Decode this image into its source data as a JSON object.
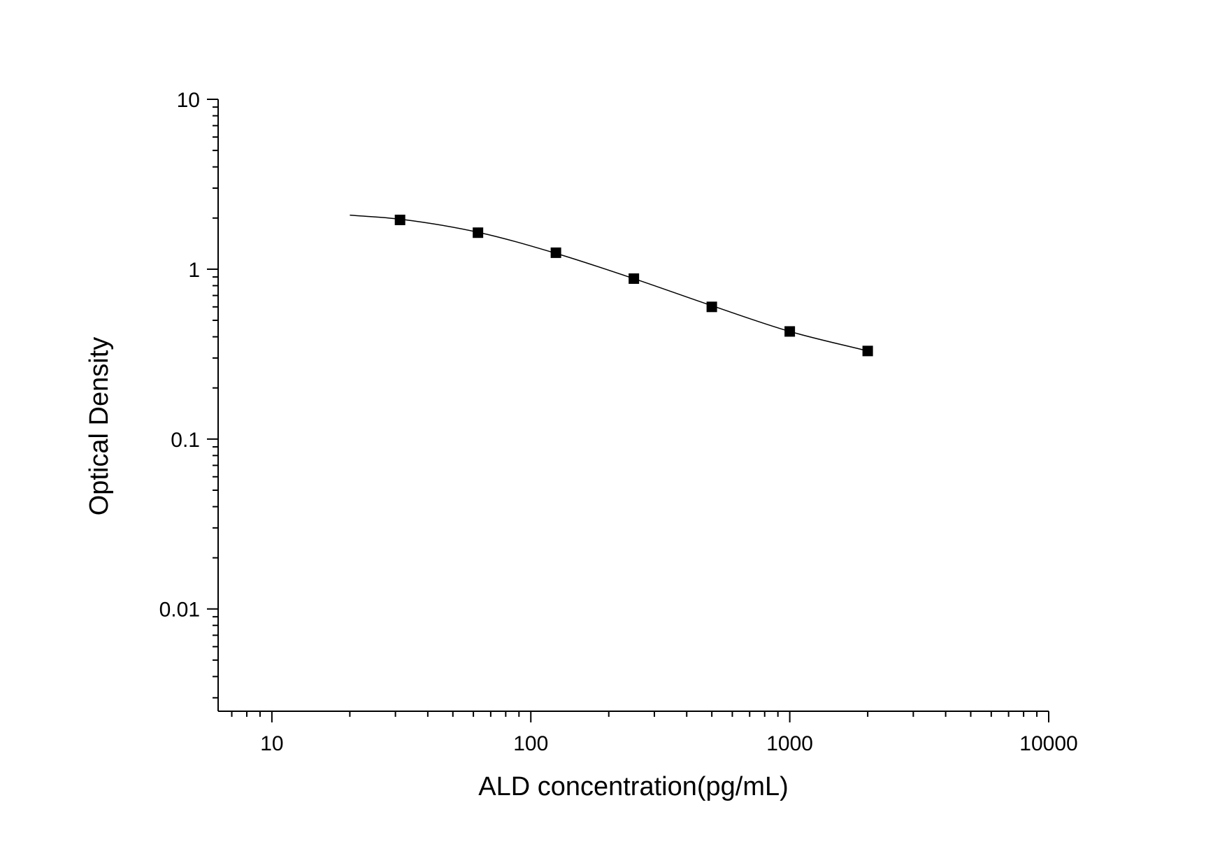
{
  "chart_data": {
    "type": "scatter",
    "title": "",
    "xlabel": "ALD concentration(pg/mL)",
    "ylabel": "Optical Density",
    "x_scale": "log",
    "y_scale": "log",
    "xlim": [
      6.2,
      10000
    ],
    "ylim": [
      0.0025,
      10
    ],
    "x_ticks": [
      10,
      100,
      1000,
      10000
    ],
    "x_tick_labels": [
      "10",
      "100",
      "1000",
      "10000"
    ],
    "y_ticks": [
      0.01,
      0.1,
      1,
      10
    ],
    "y_tick_labels": [
      "0.01",
      "0.1",
      "1",
      "10"
    ],
    "grid": false,
    "legend": "none",
    "colors": {
      "points": "#000000",
      "fit_line": "#000000",
      "axes": "#000000"
    },
    "series": [
      {
        "type": "scatter",
        "marker": "square",
        "x": [
          31.25,
          62.5,
          125,
          250,
          500,
          1000,
          2000
        ],
        "y": [
          1.95,
          1.64,
          1.25,
          0.88,
          0.6,
          0.43,
          0.33
        ]
      },
      {
        "type": "line",
        "x": [
          20,
          31.25,
          62.5,
          125,
          250,
          500,
          1000,
          2000
        ],
        "y": [
          2.08,
          1.97,
          1.65,
          1.24,
          0.88,
          0.61,
          0.43,
          0.33
        ]
      }
    ]
  }
}
